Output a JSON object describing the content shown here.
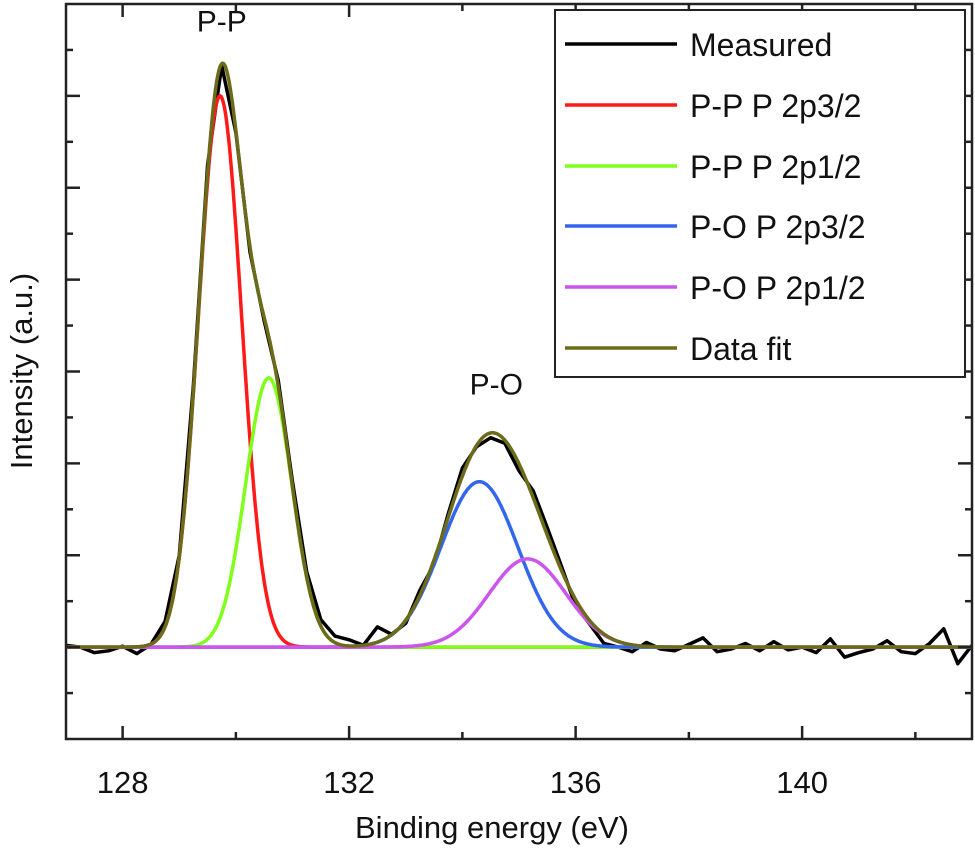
{
  "chart_data": {
    "type": "line",
    "title": "",
    "xlabel": "Binding energy (eV)",
    "ylabel": "Intensity (a.u.)",
    "xlim": [
      127,
      143
    ],
    "ylim": [
      -1,
      7
    ],
    "x_ticks": [
      128,
      132,
      136,
      140
    ],
    "x_tick_labels": [
      "128",
      "132",
      "136",
      "140"
    ],
    "y_tick_labels_shown": false,
    "grid": false,
    "legend_position": "top-right",
    "annotations": [
      {
        "text": "P-P",
        "x": 129.75,
        "y": 6.7
      },
      {
        "text": "P-O",
        "x": 134.6,
        "y": 2.75
      }
    ],
    "components": [
      {
        "name": "P-P P 2p3/2",
        "color": "#ff1a1a",
        "shape": "gaussian",
        "center": 129.72,
        "height": 6.0,
        "fwhm": 0.89
      },
      {
        "name": "P-P P 2p1/2",
        "color": "#80ff1a",
        "shape": "gaussian",
        "center": 130.58,
        "height": 2.93,
        "fwhm": 0.96
      },
      {
        "name": "P-O P 2p3/2",
        "color": "#3366ee",
        "shape": "gaussian",
        "center": 134.3,
        "height": 1.8,
        "fwhm": 1.6
      },
      {
        "name": "P-O P 2p1/2",
        "color": "#cc55ee",
        "shape": "gaussian",
        "center": 135.15,
        "height": 0.96,
        "fwhm": 1.6
      }
    ],
    "series": [
      {
        "name": "Measured",
        "color": "#000000",
        "x": [
          127.0,
          127.25,
          127.5,
          127.75,
          128.0,
          128.25,
          128.5,
          128.75,
          129.0,
          129.25,
          129.5,
          129.75,
          130.0,
          130.25,
          130.5,
          130.75,
          131.0,
          131.25,
          131.5,
          131.75,
          132.0,
          132.25,
          132.5,
          132.75,
          133.0,
          133.25,
          133.5,
          133.75,
          134.0,
          134.25,
          134.5,
          134.75,
          135.0,
          135.25,
          135.5,
          135.75,
          136.0,
          136.25,
          136.5,
          136.75,
          137.0,
          137.25,
          137.5,
          137.75,
          138.0,
          138.25,
          138.5,
          138.75,
          139.0,
          139.25,
          139.5,
          139.75,
          140.0,
          140.25,
          140.5,
          140.75,
          141.0,
          141.25,
          141.5,
          141.75,
          142.0,
          142.25,
          142.5,
          142.75,
          143.0
        ],
        "y": [
          0.02,
          0.0,
          -0.06,
          -0.04,
          0.01,
          -0.07,
          0.03,
          0.28,
          1.0,
          2.85,
          5.25,
          6.33,
          5.6,
          4.3,
          3.55,
          2.9,
          1.8,
          0.82,
          0.3,
          0.12,
          0.08,
          0.02,
          0.22,
          0.14,
          0.26,
          0.62,
          0.9,
          1.45,
          1.95,
          2.18,
          2.28,
          2.22,
          1.92,
          1.7,
          1.3,
          0.88,
          0.45,
          0.25,
          0.04,
          0.0,
          -0.05,
          0.05,
          -0.02,
          -0.04,
          0.03,
          0.1,
          -0.05,
          -0.02,
          0.04,
          -0.04,
          0.06,
          -0.03,
          0.0,
          -0.06,
          0.09,
          -0.11,
          -0.06,
          -0.02,
          0.07,
          -0.05,
          -0.07,
          0.04,
          0.2,
          -0.18,
          0.02
        ]
      },
      {
        "name": "P-P P 2p3/2",
        "color": "#ff1a1a",
        "from_component": 0
      },
      {
        "name": "P-P P 2p1/2",
        "color": "#80ff1a",
        "from_component": 1
      },
      {
        "name": "P-O P 2p3/2",
        "color": "#3366ee",
        "from_component": 2
      },
      {
        "name": "P-O P 2p1/2",
        "color": "#cc55ee",
        "from_component": 3
      },
      {
        "name": "Data fit",
        "color": "#6b6b1a",
        "sum_of_components": true
      }
    ]
  }
}
